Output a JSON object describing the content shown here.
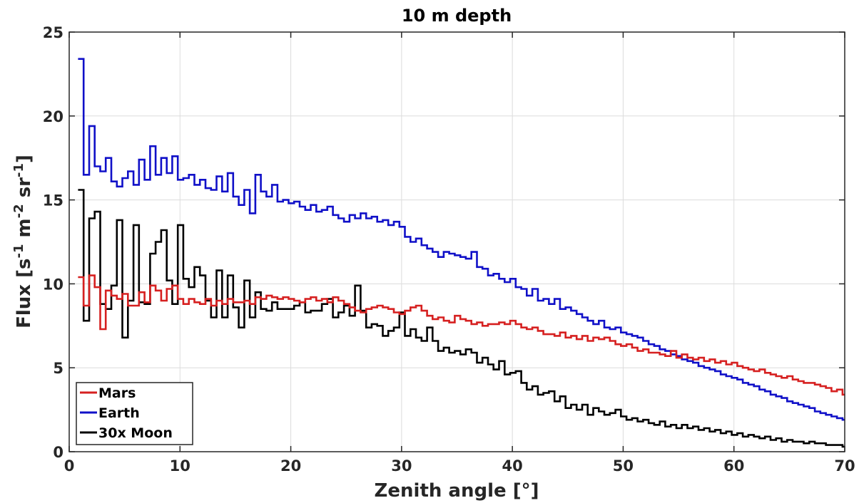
{
  "chart_data": {
    "type": "line",
    "style": "stairs",
    "title": "10 m depth",
    "xlabel": "Zenith angle [°]",
    "ylabel": {
      "parts": [
        {
          "text": "Flux [s",
          "sup": false
        },
        {
          "text": "-1",
          "sup": true
        },
        {
          "text": " m",
          "sup": false
        },
        {
          "text": "-2",
          "sup": true
        },
        {
          "text": " sr",
          "sup": false
        },
        {
          "text": "-1",
          "sup": true
        },
        {
          "text": "]",
          "sup": false
        }
      ]
    },
    "xlim": [
      0,
      70
    ],
    "ylim": [
      0,
      25
    ],
    "xticks": [
      "0",
      "10",
      "20",
      "30",
      "40",
      "50",
      "60",
      "70"
    ],
    "yticks": [
      "0",
      "5",
      "10",
      "15",
      "20",
      "25"
    ],
    "grid": true,
    "legend_position": "bottom-left",
    "bin_edges": [
      0.8,
      1.3,
      1.8,
      2.3,
      2.8,
      3.3,
      3.8,
      4.3,
      4.8,
      5.3,
      5.8,
      6.3,
      6.8,
      7.3,
      7.8,
      8.3,
      8.8,
      9.3,
      9.8,
      10.3,
      10.8,
      11.3,
      11.8,
      12.3,
      12.8,
      13.3,
      13.8,
      14.3,
      14.8,
      15.3,
      15.8,
      16.3,
      16.8,
      17.3,
      17.8,
      18.3,
      18.8,
      19.3,
      19.8,
      20.3,
      20.8,
      21.3,
      21.8,
      22.3,
      22.8,
      23.3,
      23.8,
      24.3,
      24.8,
      25.3,
      25.8,
      26.3,
      26.8,
      27.3,
      27.8,
      28.3,
      28.8,
      29.3,
      29.8,
      30.3,
      30.8,
      31.3,
      31.8,
      32.3,
      32.8,
      33.3,
      33.8,
      34.3,
      34.8,
      35.3,
      35.8,
      36.3,
      36.8,
      37.3,
      37.8,
      38.3,
      38.8,
      39.3,
      39.8,
      40.3,
      40.8,
      41.3,
      41.8,
      42.3,
      42.8,
      43.3,
      43.8,
      44.3,
      44.8,
      45.3,
      45.8,
      46.3,
      46.8,
      47.3,
      47.8,
      48.3,
      48.8,
      49.3,
      49.8,
      50.3,
      50.8,
      51.3,
      51.8,
      52.3,
      52.8,
      53.3,
      53.8,
      54.3,
      54.8,
      55.3,
      55.8,
      56.3,
      56.8,
      57.3,
      57.8,
      58.3,
      58.8,
      59.3,
      59.8,
      60.3,
      60.8,
      61.3,
      61.8,
      62.3,
      62.8,
      63.3,
      63.8,
      64.3,
      64.8,
      65.3,
      65.8,
      66.3,
      66.8,
      67.3,
      67.8,
      68.3,
      68.8,
      69.3,
      69.8
    ],
    "series": [
      {
        "name": "Mars",
        "color": "#d62020",
        "values": [
          10.4,
          8.7,
          10.5,
          9.8,
          7.3,
          9.6,
          9.3,
          9.1,
          9.4,
          8.7,
          8.7,
          9.5,
          8.9,
          9.9,
          9.6,
          9.0,
          9.7,
          9.9,
          9.1,
          8.8,
          9.1,
          8.9,
          8.8,
          9.1,
          8.7,
          9.0,
          8.8,
          9.1,
          8.9,
          8.9,
          9.0,
          8.8,
          9.2,
          9.1,
          9.3,
          9.2,
          9.1,
          9.2,
          9.1,
          9.0,
          8.9,
          9.1,
          9.2,
          9.0,
          9.1,
          8.9,
          9.2,
          9.0,
          8.8,
          8.6,
          8.4,
          8.3,
          8.5,
          8.6,
          8.7,
          8.6,
          8.5,
          8.3,
          8.2,
          8.4,
          8.6,
          8.7,
          8.4,
          8.1,
          7.9,
          8.0,
          7.8,
          7.7,
          8.1,
          7.9,
          7.8,
          7.6,
          7.7,
          7.5,
          7.6,
          7.6,
          7.7,
          7.6,
          7.8,
          7.6,
          7.4,
          7.3,
          7.4,
          7.2,
          7.0,
          7.0,
          6.9,
          7.1,
          6.8,
          6.9,
          6.7,
          6.9,
          6.6,
          6.8,
          6.7,
          6.8,
          6.6,
          6.4,
          6.3,
          6.4,
          6.2,
          6.0,
          6.1,
          5.9,
          5.9,
          5.8,
          5.7,
          6.0,
          5.6,
          5.8,
          5.6,
          5.5,
          5.6,
          5.4,
          5.5,
          5.3,
          5.4,
          5.2,
          5.3,
          5.1,
          5.0,
          4.9,
          4.8,
          4.9,
          4.7,
          4.6,
          4.5,
          4.4,
          4.5,
          4.3,
          4.2,
          4.1,
          4.1,
          4.0,
          3.9,
          3.8,
          3.6,
          3.7,
          3.4
        ]
      },
      {
        "name": "Earth",
        "color": "#1010c8",
        "values": [
          23.4,
          16.5,
          19.4,
          17.0,
          16.7,
          17.5,
          16.1,
          15.8,
          16.3,
          16.7,
          15.9,
          17.4,
          16.2,
          18.2,
          16.5,
          17.5,
          16.6,
          17.6,
          16.2,
          16.3,
          16.5,
          15.9,
          16.2,
          15.7,
          15.6,
          16.4,
          15.5,
          16.6,
          15.2,
          14.7,
          15.6,
          14.2,
          16.5,
          15.5,
          15.2,
          15.9,
          14.9,
          15.0,
          14.8,
          14.9,
          14.6,
          14.4,
          14.7,
          14.3,
          14.4,
          14.6,
          14.1,
          13.9,
          13.7,
          14.1,
          13.9,
          14.2,
          13.9,
          14.0,
          13.7,
          13.8,
          13.5,
          13.7,
          13.4,
          12.8,
          12.5,
          12.7,
          12.3,
          12.1,
          11.9,
          11.6,
          11.9,
          11.8,
          11.7,
          11.6,
          11.5,
          11.9,
          11.0,
          10.9,
          10.5,
          10.6,
          10.3,
          10.1,
          10.3,
          9.8,
          9.7,
          9.3,
          9.7,
          9.0,
          9.1,
          8.8,
          9.1,
          8.5,
          8.6,
          8.4,
          8.2,
          8.0,
          7.8,
          7.6,
          7.8,
          7.4,
          7.3,
          7.4,
          7.1,
          7.0,
          6.9,
          6.8,
          6.6,
          6.4,
          6.3,
          6.1,
          6.0,
          5.8,
          5.7,
          5.5,
          5.4,
          5.3,
          5.1,
          5.0,
          4.9,
          4.8,
          4.6,
          4.5,
          4.4,
          4.3,
          4.1,
          4.0,
          3.9,
          3.7,
          3.6,
          3.4,
          3.3,
          3.2,
          3.0,
          2.9,
          2.8,
          2.7,
          2.6,
          2.4,
          2.3,
          2.2,
          2.1,
          2.0,
          1.9
        ]
      },
      {
        "name": "30x Moon",
        "color": "#000000",
        "values": [
          15.6,
          7.8,
          13.9,
          14.3,
          8.8,
          8.5,
          9.9,
          13.8,
          6.8,
          9.0,
          13.5,
          8.9,
          8.8,
          11.8,
          12.5,
          13.2,
          10.2,
          8.8,
          13.5,
          10.3,
          9.8,
          11.0,
          10.5,
          9.0,
          8.0,
          10.8,
          8.0,
          10.5,
          8.6,
          7.4,
          10.2,
          8.0,
          9.5,
          8.5,
          8.4,
          8.9,
          8.5,
          8.5,
          8.5,
          8.7,
          8.9,
          8.3,
          8.4,
          8.4,
          8.8,
          9.1,
          8.0,
          8.3,
          8.7,
          8.1,
          9.9,
          8.4,
          7.4,
          7.6,
          7.5,
          6.9,
          7.2,
          7.4,
          8.3,
          6.9,
          7.3,
          6.8,
          6.6,
          7.4,
          6.6,
          6.0,
          6.2,
          5.9,
          6.0,
          5.8,
          6.1,
          5.9,
          5.3,
          5.6,
          5.2,
          4.9,
          5.4,
          4.6,
          4.7,
          4.8,
          4.1,
          3.7,
          3.9,
          3.4,
          3.5,
          3.6,
          3.0,
          3.3,
          2.6,
          2.8,
          2.5,
          2.8,
          2.2,
          2.6,
          2.4,
          2.2,
          2.3,
          2.5,
          2.1,
          1.9,
          2.0,
          1.8,
          1.9,
          1.7,
          1.6,
          1.8,
          1.5,
          1.6,
          1.4,
          1.6,
          1.4,
          1.5,
          1.3,
          1.4,
          1.2,
          1.3,
          1.1,
          1.2,
          1.0,
          1.1,
          0.9,
          1.0,
          0.9,
          0.8,
          0.9,
          0.7,
          0.8,
          0.6,
          0.7,
          0.6,
          0.6,
          0.5,
          0.6,
          0.5,
          0.5,
          0.4,
          0.4,
          0.4,
          0.3
        ]
      }
    ]
  }
}
